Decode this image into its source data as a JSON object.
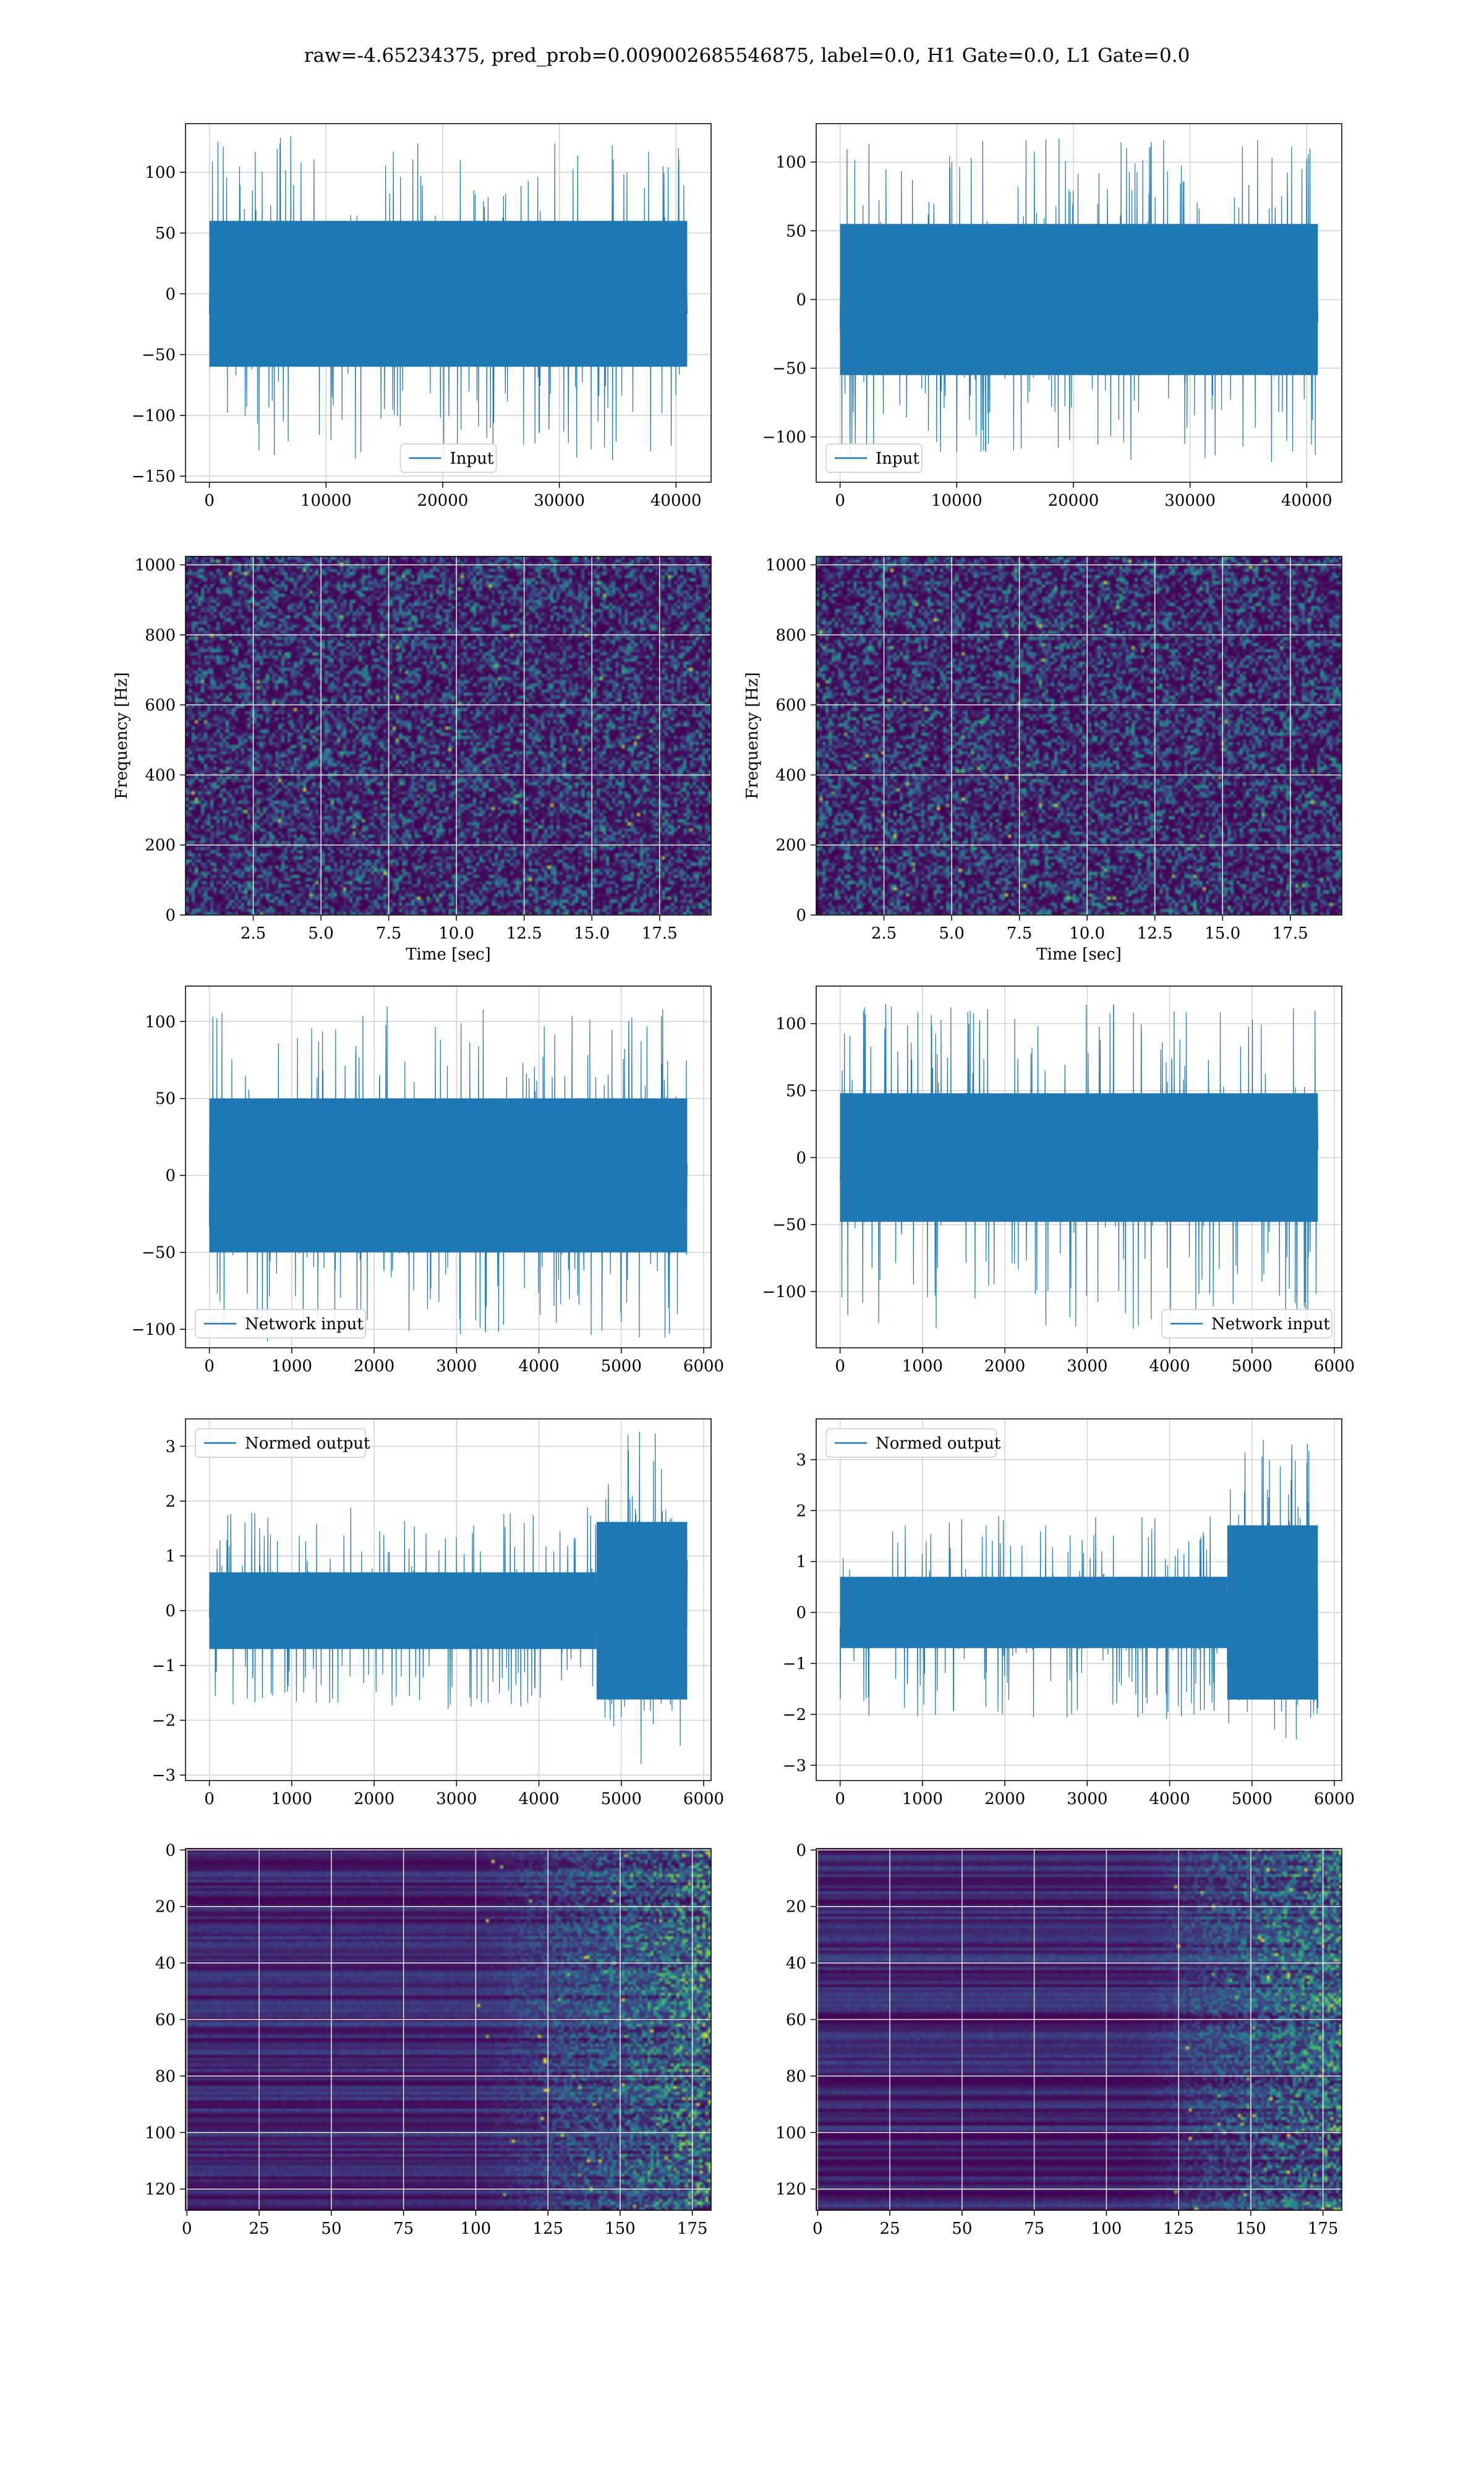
{
  "figure": {
    "suptitle": "raw=-4.65234375, pred_prob=0.009002685546875, label=0.0, H1 Gate=0.0, L1 Gate=0.0"
  },
  "colors": {
    "series": "#1f77b4",
    "grid": "#d0d0d0",
    "viridis_dark": "#440154",
    "viridis_mid": "#3b528b",
    "viridis_teal": "#21918c",
    "viridis_green": "#5ec962",
    "viridis_yellow": "#fde725"
  },
  "chart_data": [
    {
      "id": "h1-input",
      "type": "line",
      "legend": "Input",
      "legend_loc": "lower center",
      "x_range": [
        0,
        40960
      ],
      "xlim": [
        -2048,
        43008
      ],
      "xticks": [
        0,
        10000,
        20000,
        30000,
        40000
      ],
      "ylim": [
        -155,
        140
      ],
      "yticks": [
        -150,
        -100,
        -50,
        0,
        50,
        100
      ],
      "noise": {
        "core": 60,
        "spike_max": 130,
        "spike_min": -138
      },
      "grid": true
    },
    {
      "id": "l1-input",
      "type": "line",
      "legend": "Input",
      "legend_loc": "lower left",
      "x_range": [
        0,
        40960
      ],
      "xlim": [
        -2048,
        43008
      ],
      "xticks": [
        0,
        10000,
        20000,
        30000,
        40000
      ],
      "ylim": [
        -133,
        128
      ],
      "yticks": [
        -100,
        -50,
        0,
        50,
        100
      ],
      "noise": {
        "core": 55,
        "spike_max": 118,
        "spike_min": -120
      },
      "grid": true
    },
    {
      "id": "h1-spectrogram",
      "type": "heatmap",
      "colormap": "viridis",
      "xlabel": "Time [sec]",
      "ylabel": "Frequency [Hz]",
      "xlim": [
        0,
        19.4
      ],
      "xticks": [
        2.5,
        5.0,
        7.5,
        10.0,
        12.5,
        15.0,
        17.5
      ],
      "ylim": [
        0,
        1024
      ],
      "yticks": [
        0,
        200,
        400,
        600,
        800,
        1000
      ],
      "description": "broadband noise, dark background with scattered teal/green speckles",
      "grid": true
    },
    {
      "id": "l1-spectrogram",
      "type": "heatmap",
      "colormap": "viridis",
      "xlabel": "Time [sec]",
      "ylabel": "Frequency [Hz]",
      "xlim": [
        0,
        19.4
      ],
      "xticks": [
        2.5,
        5.0,
        7.5,
        10.0,
        12.5,
        15.0,
        17.5
      ],
      "ylim": [
        0,
        1024
      ],
      "yticks": [
        0,
        200,
        400,
        600,
        800,
        1000
      ],
      "description": "broadband noise, dark background with scattered teal/green speckles",
      "grid": true
    },
    {
      "id": "h1-network-input",
      "type": "line",
      "legend": "Network input",
      "legend_loc": "lower left",
      "x_range": [
        0,
        5800
      ],
      "xlim": [
        -290,
        6090
      ],
      "xticks": [
        0,
        1000,
        2000,
        3000,
        4000,
        5000,
        6000
      ],
      "ylim": [
        -112,
        123
      ],
      "yticks": [
        -100,
        -50,
        0,
        50,
        100
      ],
      "noise": {
        "core": 50,
        "spike_max": 110,
        "spike_min": -108
      },
      "grid": true
    },
    {
      "id": "l1-network-input",
      "type": "line",
      "legend": "Network input",
      "legend_loc": "lower right",
      "x_range": [
        0,
        5800
      ],
      "xlim": [
        -290,
        6090
      ],
      "xticks": [
        0,
        1000,
        2000,
        3000,
        4000,
        5000,
        6000
      ],
      "ylim": [
        -142,
        128
      ],
      "yticks": [
        -100,
        -50,
        0,
        50,
        100
      ],
      "noise": {
        "core": 48,
        "spike_max": 115,
        "spike_min": -128
      },
      "grid": true
    },
    {
      "id": "h1-normed-output",
      "type": "line",
      "legend": "Normed output",
      "legend_loc": "upper left",
      "x_range": [
        0,
        5800
      ],
      "xlim": [
        -290,
        6090
      ],
      "xticks": [
        0,
        1000,
        2000,
        3000,
        4000,
        5000,
        6000
      ],
      "ylim": [
        -3.1,
        3.5
      ],
      "yticks": [
        -3,
        -2,
        -1,
        0,
        1,
        2,
        3
      ],
      "noise": {
        "core": 0.7,
        "spike_max": 1.9,
        "spike_min": -1.8,
        "late_start": 4700,
        "late_core": 1.8,
        "late_max": 3.3,
        "late_min": -2.8
      },
      "grid": true
    },
    {
      "id": "l1-normed-output",
      "type": "line",
      "legend": "Normed output",
      "legend_loc": "upper left",
      "x_range": [
        0,
        5800
      ],
      "xlim": [
        -290,
        6090
      ],
      "xticks": [
        0,
        1000,
        2000,
        3000,
        4000,
        5000,
        6000
      ],
      "ylim": [
        -3.3,
        3.8
      ],
      "yticks": [
        -3,
        -2,
        -1,
        0,
        1,
        2,
        3
      ],
      "noise": {
        "core": 0.7,
        "spike_max": 1.9,
        "spike_min": -2.1,
        "late_start": 4700,
        "late_core": 1.9,
        "late_max": 3.6,
        "late_min": -2.9
      },
      "grid": true
    },
    {
      "id": "h1-feature-map",
      "type": "heatmap",
      "colormap": "viridis",
      "xlim": [
        -0.5,
        181.5
      ],
      "xticks": [
        0,
        25,
        50,
        75,
        100,
        125,
        150,
        175
      ],
      "ylim": [
        127.5,
        -0.5
      ],
      "yticks": [
        0,
        20,
        40,
        60,
        80,
        100,
        120
      ],
      "description": "128 channels x 182 steps; mostly dark horizontal stripes, activation increasing after step ~100, bright teal/yellow near steps 150-181",
      "grid": true
    },
    {
      "id": "l1-feature-map",
      "type": "heatmap",
      "colormap": "viridis",
      "xlim": [
        -0.5,
        181.5
      ],
      "xticks": [
        0,
        25,
        50,
        75,
        100,
        125,
        150,
        175
      ],
      "ylim": [
        127.5,
        -0.5
      ],
      "yticks": [
        0,
        20,
        40,
        60,
        80,
        100,
        120
      ],
      "description": "128 channels x 182 steps; dark horizontal stripes, activation increasing after step ~110, bright teal/yellow near steps 135-181",
      "grid": true
    }
  ]
}
